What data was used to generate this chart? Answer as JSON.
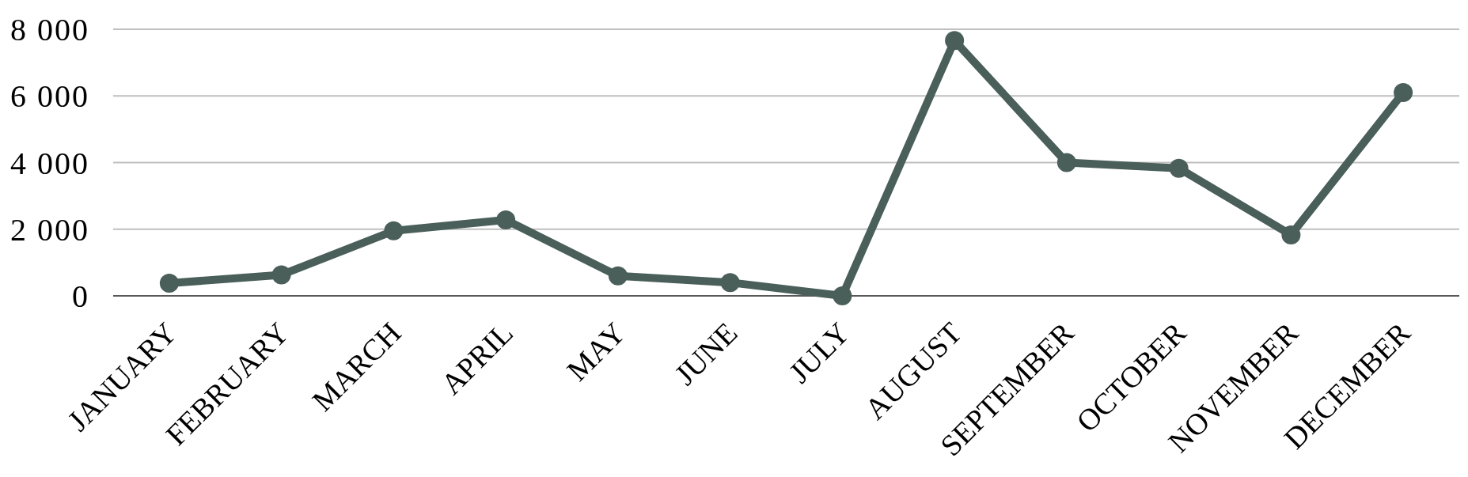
{
  "chart_data": {
    "type": "line",
    "categories": [
      "JANUARY",
      "FEBRUARY",
      "MARCH",
      "APRIL",
      "MAY",
      "JUNE",
      "JULY",
      "AUGUST",
      "SEPTEMBER",
      "OCTOBER",
      "NOVEMBER",
      "DECEMBER"
    ],
    "series": [
      {
        "color": "#4a5f5a",
        "values": [
          380,
          630,
          1950,
          2280,
          600,
          400,
          0,
          7660,
          4000,
          3830,
          1830,
          6100
        ]
      }
    ],
    "ylim": [
      0,
      8000
    ],
    "yticks": [
      {
        "value": 0,
        "label": "0"
      },
      {
        "value": 2000,
        "label": "2 000"
      },
      {
        "value": 4000,
        "label": "4 000"
      },
      {
        "value": 6000,
        "label": "6 000"
      },
      {
        "value": 8000,
        "label": "8 000"
      }
    ],
    "grid": "y",
    "marker": "circle",
    "line_style": "solid"
  }
}
